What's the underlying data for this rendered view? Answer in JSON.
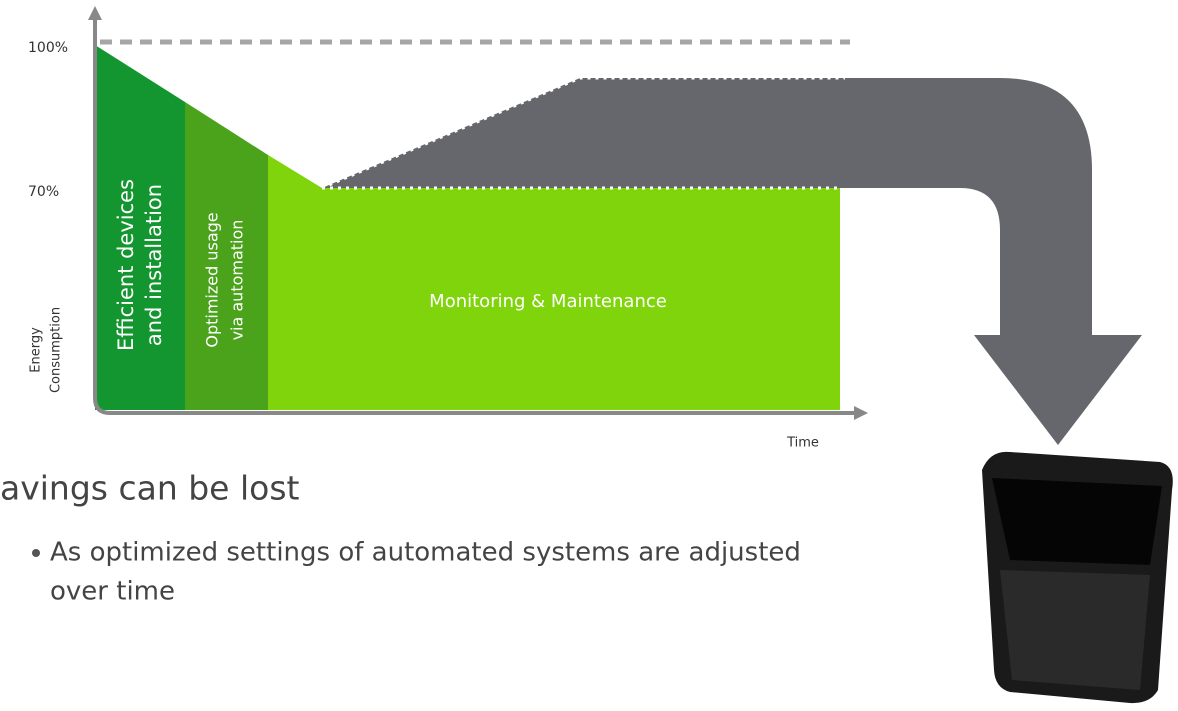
{
  "axis": {
    "y_labels": [
      "100%",
      "70%"
    ],
    "y_title": [
      "Energy",
      "Consumption"
    ],
    "x_title": "Time"
  },
  "phases": [
    {
      "lines": [
        "Efficient devices",
        "and installation"
      ]
    },
    {
      "lines": [
        "Optimized usage",
        "via automation"
      ]
    },
    {
      "lines": [
        "Monitoring & Maintenance"
      ]
    }
  ],
  "bullets": {
    "heading": "avings can be lost",
    "items": [
      {
        "lines": [
          "As optimized settings of automated systems are adjusted",
          "over time"
        ]
      }
    ]
  }
}
